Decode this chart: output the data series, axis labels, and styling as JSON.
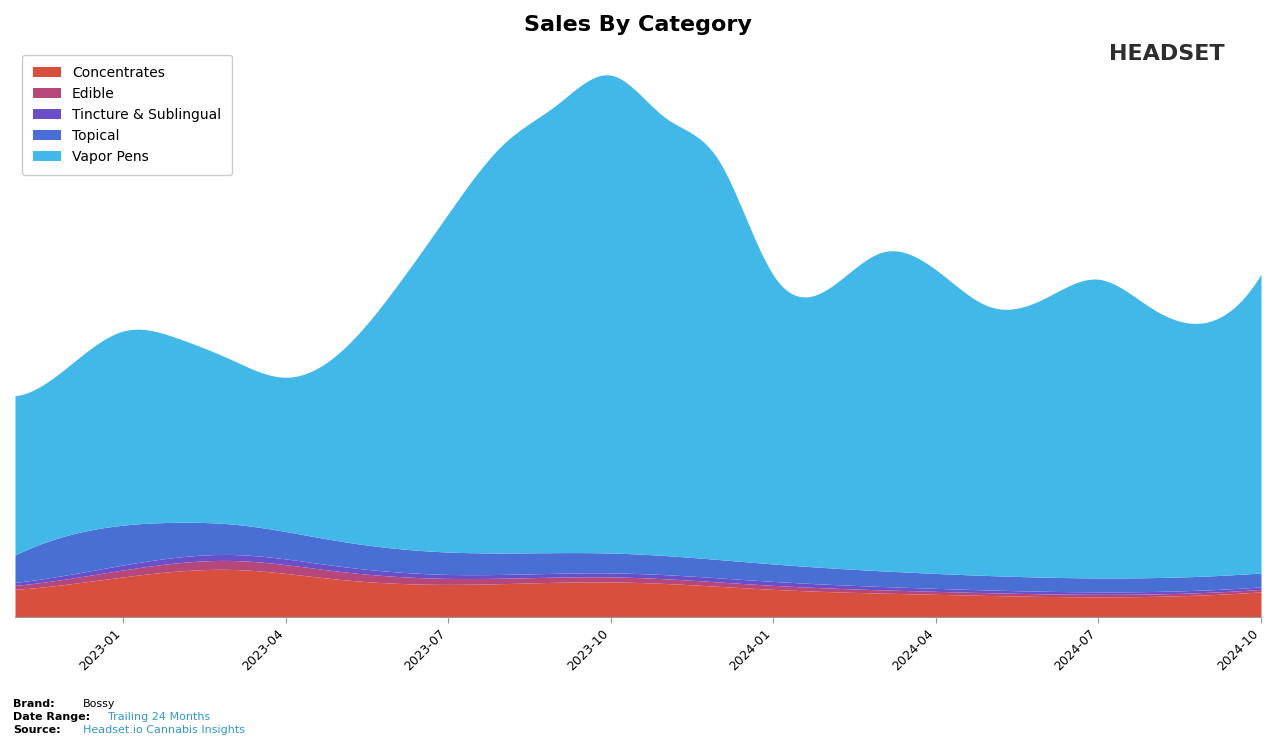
{
  "title": "Sales By Category",
  "categories": [
    "Concentrates",
    "Edible",
    "Tincture & Sublingual",
    "Topical",
    "Vapor Pens"
  ],
  "colors": [
    "#d94f3d",
    "#b5477a",
    "#6a4fc8",
    "#4a6fd4",
    "#41b8e8"
  ],
  "x_labels": [
    "2023-01",
    "2023-04",
    "2023-07",
    "2023-10",
    "2024-01",
    "2024-04",
    "2024-07",
    "2024-10"
  ],
  "background_color": "#ffffff",
  "title_fontsize": 16,
  "legend_fontsize": 10,
  "footer_brand": "Bossy",
  "footer_daterange": "Trailing 24 Months",
  "footer_source": "Headset.io Cannabis Insights"
}
